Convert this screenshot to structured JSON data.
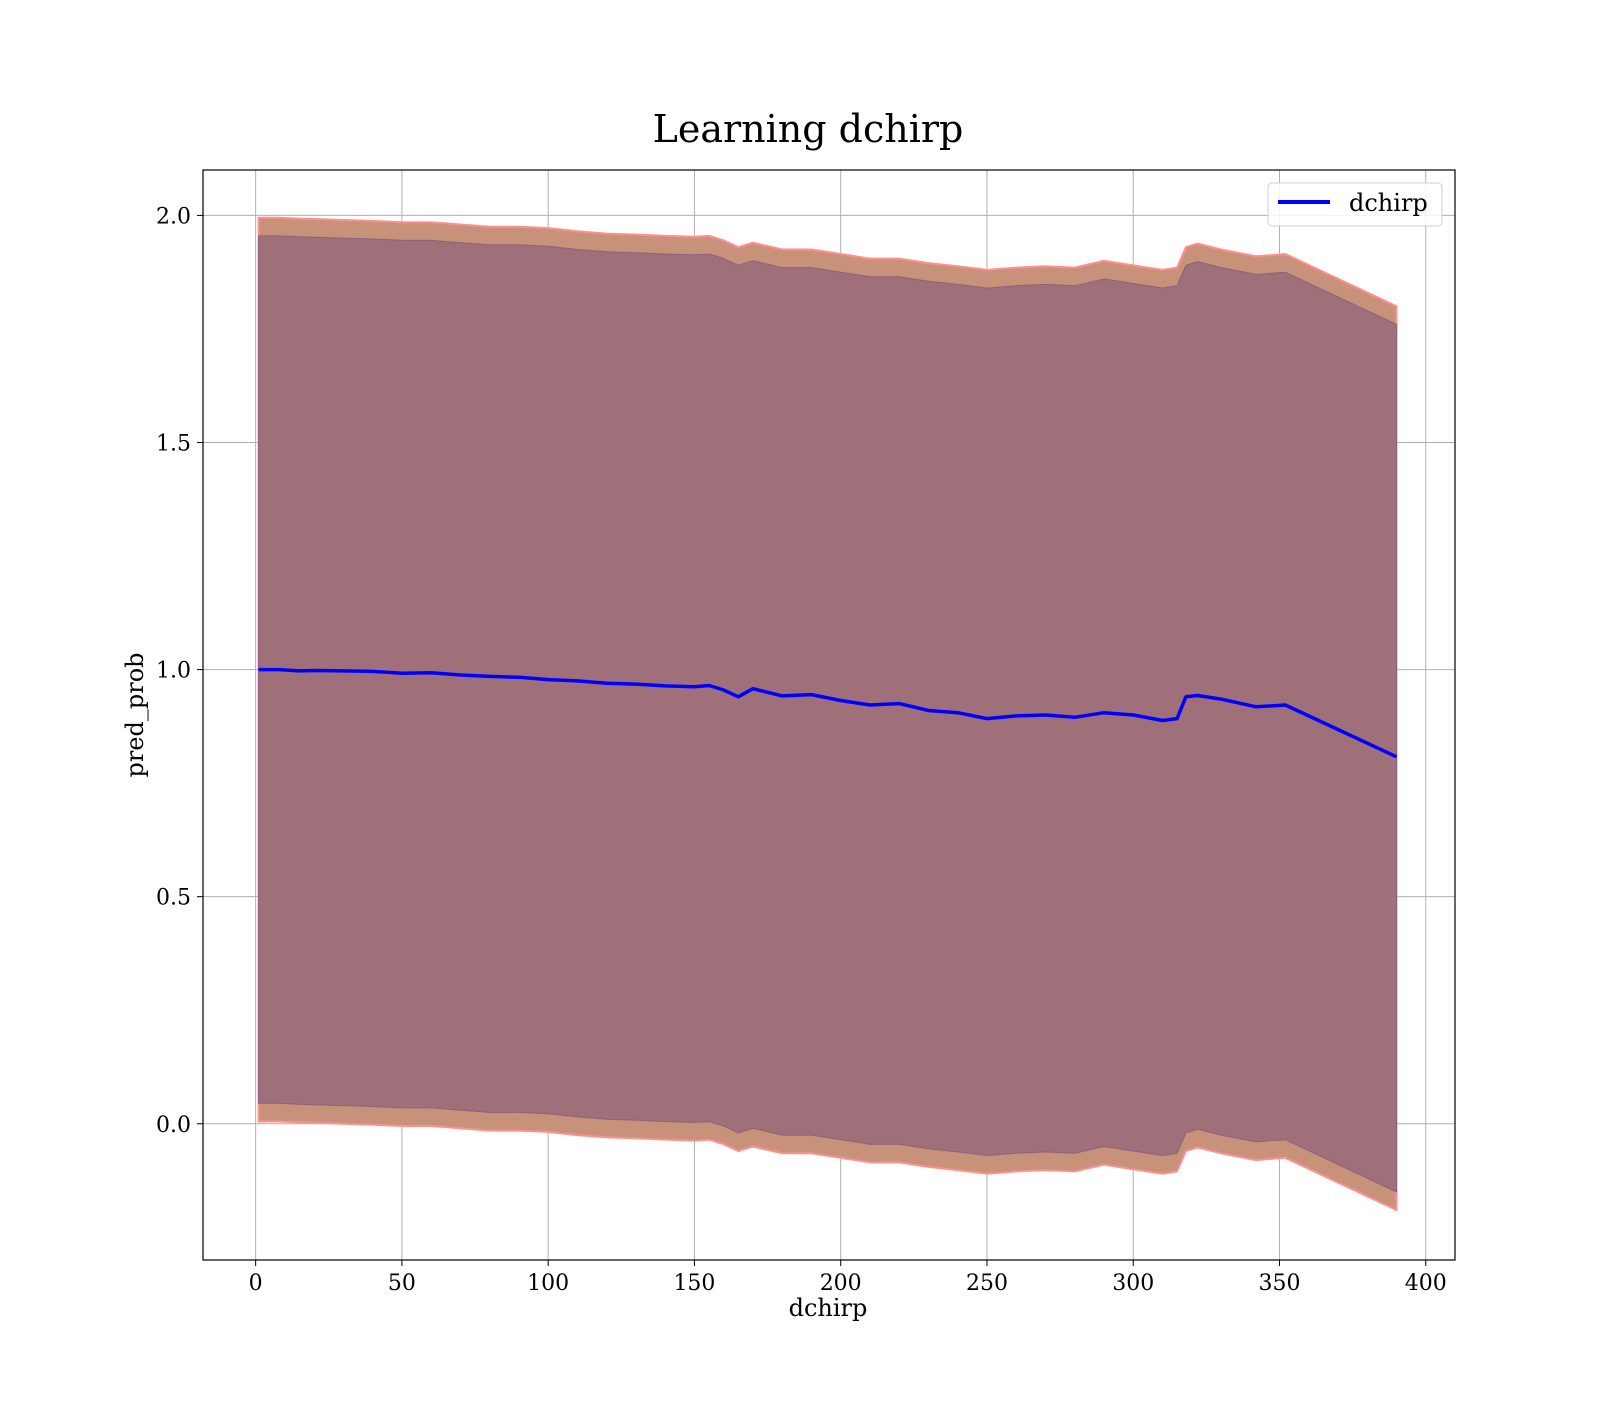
{
  "chart_data": {
    "type": "line",
    "title": "Learning dchirp",
    "xlabel": "dchirp",
    "ylabel": "pred_prob",
    "xlim": [
      -18,
      410
    ],
    "ylim": [
      -0.3,
      2.1
    ],
    "xticks": [
      0,
      50,
      100,
      150,
      200,
      250,
      300,
      350,
      400
    ],
    "yticks": [
      0.0,
      0.5,
      1.0,
      1.5,
      2.0
    ],
    "xtick_labels": [
      "0",
      "50",
      "100",
      "150",
      "200",
      "250",
      "300",
      "350",
      "400"
    ],
    "ytick_labels": [
      "0.0",
      "0.5",
      "1.0",
      "1.5",
      "2.0"
    ],
    "grid": true,
    "legend_position": "top-right",
    "colors": {
      "line": "#0000ff",
      "outer_band": "#c8917a",
      "outer_band_edge": "#ff9090",
      "inner_band": "#a0707a"
    },
    "series": [
      {
        "name": "dchirp",
        "x": [
          1,
          8,
          15,
          20,
          30,
          40,
          50,
          60,
          70,
          80,
          90,
          100,
          110,
          120,
          130,
          140,
          150,
          155,
          160,
          165,
          170,
          180,
          190,
          200,
          210,
          220,
          230,
          240,
          250,
          260,
          270,
          280,
          290,
          300,
          310,
          315,
          318,
          322,
          330,
          342,
          352,
          390
        ],
        "y": [
          1.0,
          1.0,
          0.997,
          0.998,
          0.997,
          0.996,
          0.992,
          0.993,
          0.988,
          0.985,
          0.983,
          0.978,
          0.975,
          0.97,
          0.968,
          0.964,
          0.962,
          0.965,
          0.955,
          0.94,
          0.958,
          0.942,
          0.945,
          0.932,
          0.922,
          0.925,
          0.91,
          0.905,
          0.892,
          0.898,
          0.9,
          0.895,
          0.905,
          0.9,
          0.888,
          0.892,
          0.94,
          0.943,
          0.935,
          0.918,
          0.922,
          0.808
        ]
      }
    ],
    "bands": {
      "outer_upper": [
        1.995,
        1.995,
        1.993,
        1.992,
        1.99,
        1.988,
        1.985,
        1.985,
        1.98,
        1.975,
        1.975,
        1.972,
        1.965,
        1.96,
        1.958,
        1.955,
        1.953,
        1.955,
        1.945,
        1.93,
        1.94,
        1.925,
        1.925,
        1.915,
        1.905,
        1.905,
        1.895,
        1.888,
        1.88,
        1.885,
        1.888,
        1.885,
        1.9,
        1.89,
        1.88,
        1.885,
        1.93,
        1.938,
        1.925,
        1.91,
        1.915,
        1.8
      ],
      "inner_upper": [
        1.955,
        1.955,
        1.953,
        1.952,
        1.95,
        1.948,
        1.945,
        1.945,
        1.94,
        1.935,
        1.935,
        1.932,
        1.925,
        1.92,
        1.918,
        1.915,
        1.913,
        1.915,
        1.905,
        1.89,
        1.9,
        1.885,
        1.885,
        1.875,
        1.865,
        1.865,
        1.855,
        1.848,
        1.84,
        1.845,
        1.848,
        1.845,
        1.86,
        1.85,
        1.84,
        1.845,
        1.89,
        1.898,
        1.885,
        1.87,
        1.875,
        1.76
      ],
      "inner_lower": [
        0.045,
        0.045,
        0.043,
        0.042,
        0.04,
        0.038,
        0.035,
        0.035,
        0.03,
        0.025,
        0.025,
        0.022,
        0.015,
        0.01,
        0.008,
        0.005,
        0.003,
        0.005,
        -0.005,
        -0.02,
        -0.01,
        -0.025,
        -0.025,
        -0.035,
        -0.045,
        -0.045,
        -0.055,
        -0.062,
        -0.07,
        -0.065,
        -0.062,
        -0.065,
        -0.05,
        -0.06,
        -0.07,
        -0.065,
        -0.02,
        -0.012,
        -0.025,
        -0.04,
        -0.035,
        -0.15
      ],
      "outer_lower": [
        0.005,
        0.005,
        0.003,
        0.002,
        0.0,
        -0.002,
        -0.005,
        -0.005,
        -0.01,
        -0.015,
        -0.015,
        -0.018,
        -0.025,
        -0.03,
        -0.032,
        -0.035,
        -0.037,
        -0.035,
        -0.045,
        -0.06,
        -0.05,
        -0.065,
        -0.065,
        -0.075,
        -0.085,
        -0.085,
        -0.095,
        -0.102,
        -0.11,
        -0.105,
        -0.102,
        -0.105,
        -0.09,
        -0.1,
        -0.11,
        -0.105,
        -0.06,
        -0.052,
        -0.065,
        -0.08,
        -0.075,
        -0.19
      ]
    }
  }
}
